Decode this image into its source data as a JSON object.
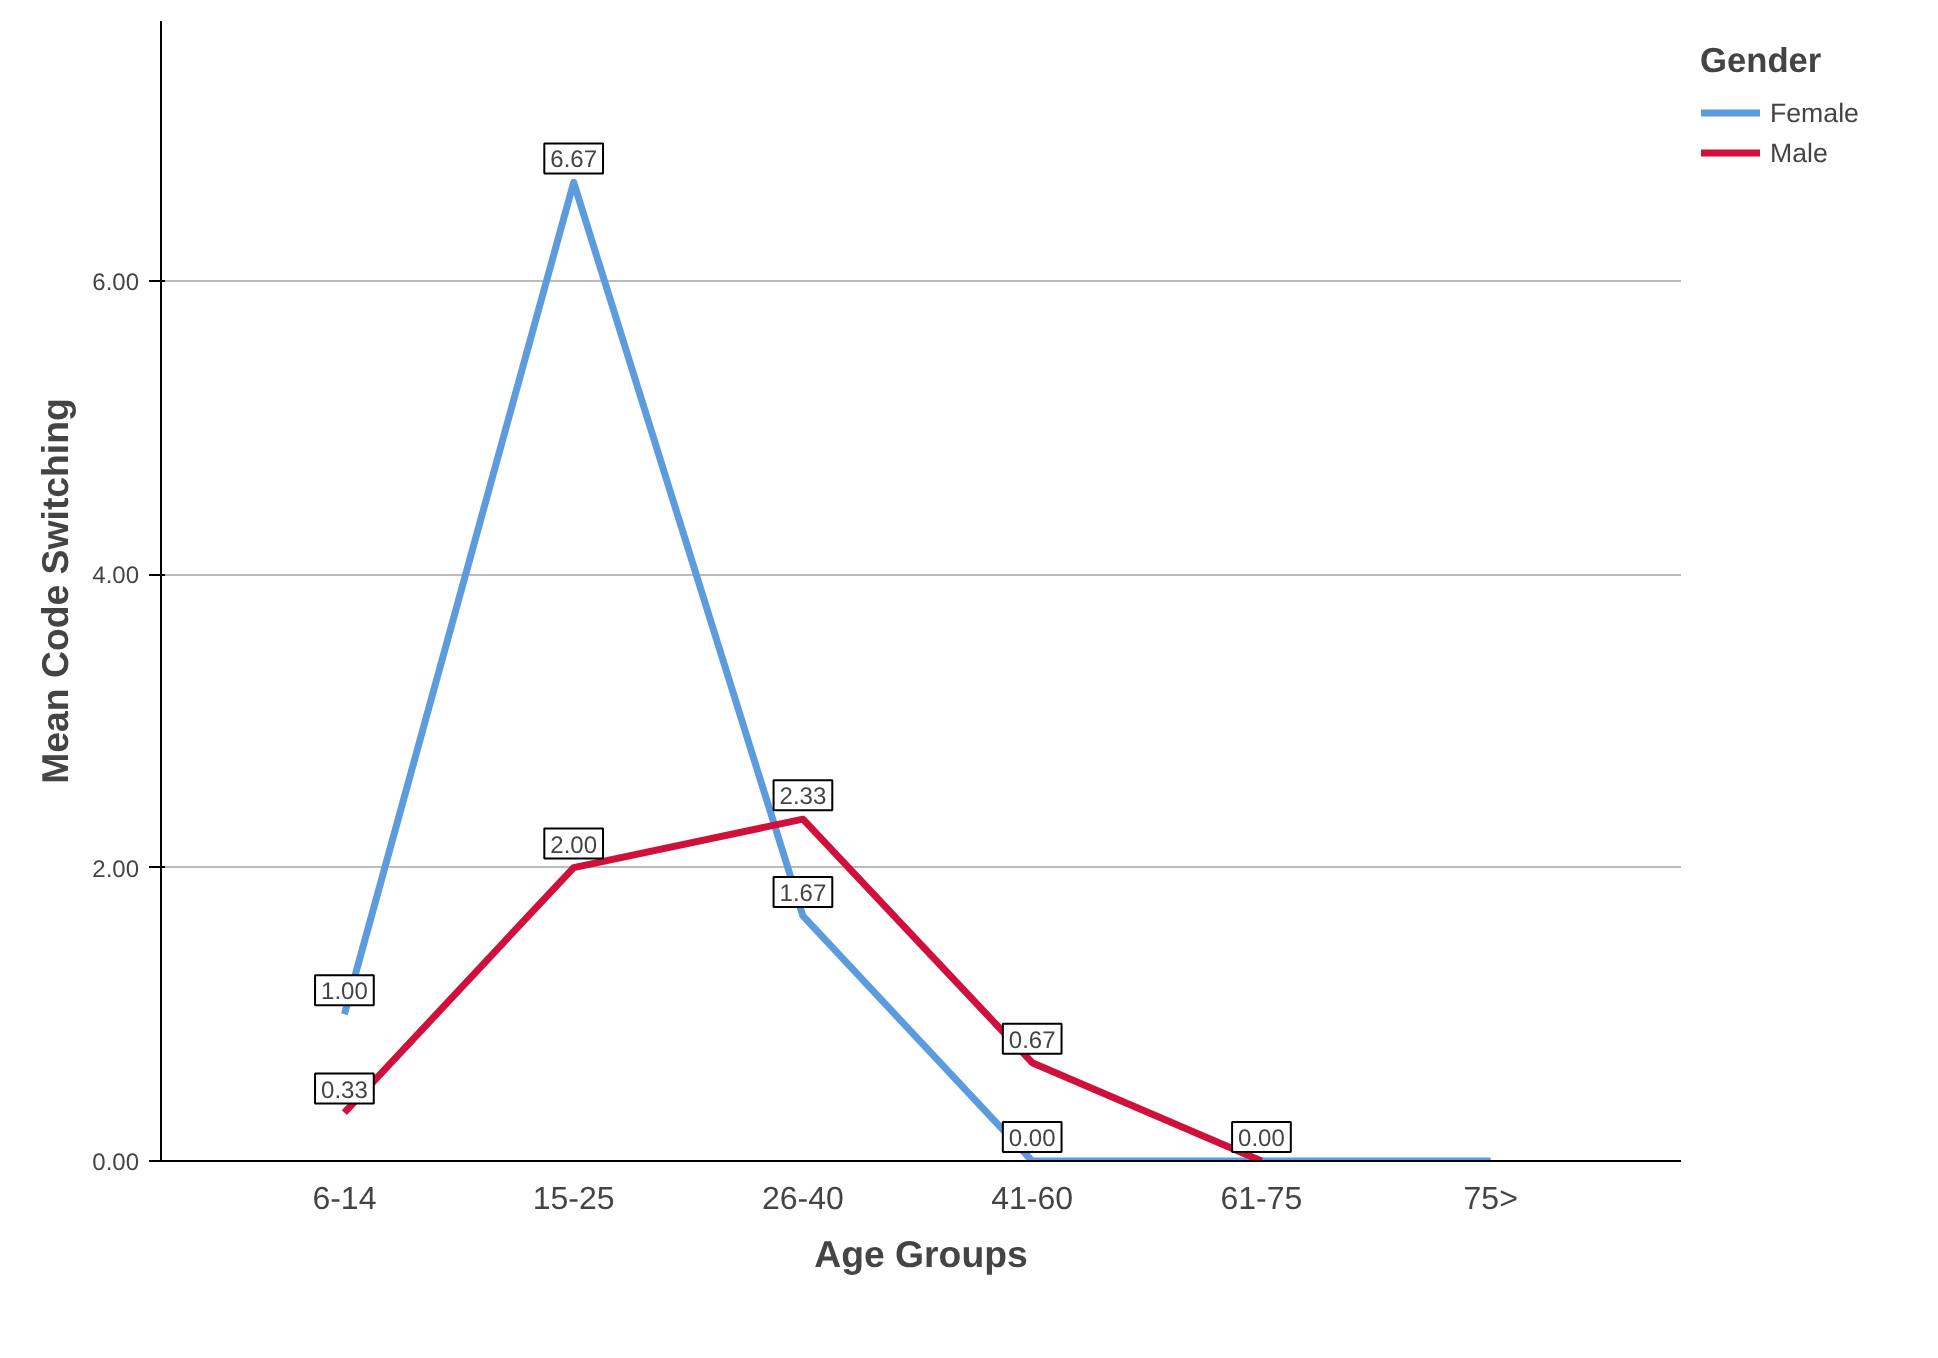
{
  "chart_data": {
    "type": "line",
    "xlabel": "Age Groups",
    "ylabel": "Mean Code Switching",
    "legend_title": "Gender",
    "categories": [
      "6-14",
      "15-25",
      "26-40",
      "41-60",
      "61-75",
      "75>"
    ],
    "series": [
      {
        "name": "Female",
        "color": "#5b9bde",
        "values": [
          1.0,
          6.67,
          1.67,
          0.0,
          0.0,
          0.0
        ],
        "value_labels": [
          "1.00",
          "6.67",
          "1.67",
          "0.00",
          null,
          null
        ]
      },
      {
        "name": "Male",
        "color": "#d0103a",
        "values": [
          0.33,
          2.0,
          2.33,
          0.67,
          0.0,
          null
        ],
        "value_labels": [
          "0.33",
          "2.00",
          "2.33",
          "0.67",
          "0.00",
          null
        ]
      }
    ],
    "ylim": [
      0,
      7.77
    ],
    "yticks": [
      {
        "value": 0,
        "label": "0.00"
      },
      {
        "value": 2,
        "label": "2.00"
      },
      {
        "value": 4,
        "label": "4.00"
      },
      {
        "value": 6,
        "label": "6.00"
      }
    ],
    "grid": "y",
    "legend": "top right",
    "line_style": "solid"
  }
}
